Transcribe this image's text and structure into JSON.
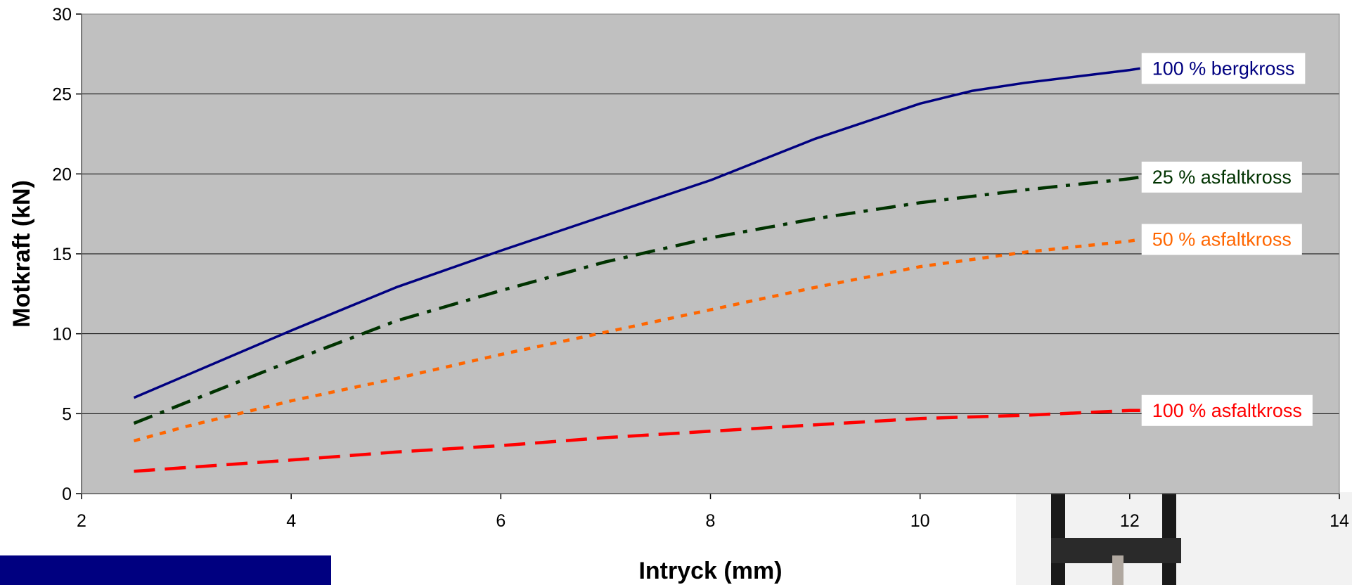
{
  "chart_data": {
    "type": "line",
    "title": "",
    "xlabel": "Intryck (mm)",
    "ylabel": "Motkraft  (kN)",
    "xlim": [
      2,
      14
    ],
    "ylim": [
      0,
      30
    ],
    "x_ticks": [
      "2",
      "4",
      "6",
      "8",
      "10",
      "12",
      "14"
    ],
    "y_ticks": [
      "0",
      "5",
      "10",
      "15",
      "20",
      "25",
      "30"
    ],
    "grid": "horizontal",
    "legend": "labels at line ends (right)",
    "plot_background": "#c0c0c0",
    "series": [
      {
        "name": "100 % bergkross",
        "color": "#000080",
        "style": "solid",
        "points": [
          [
            2.5,
            6.0
          ],
          [
            3,
            7.4
          ],
          [
            4,
            10.2
          ],
          [
            5,
            12.9
          ],
          [
            6,
            15.2
          ],
          [
            7,
            17.4
          ],
          [
            8,
            19.6
          ],
          [
            9,
            22.2
          ],
          [
            10,
            24.4
          ],
          [
            10.5,
            25.2
          ],
          [
            11,
            25.7
          ],
          [
            12,
            26.5
          ],
          [
            12.1,
            26.6
          ]
        ]
      },
      {
        "name": "25 % asfaltkross",
        "color": "#003300",
        "style": "dashdot",
        "points": [
          [
            2.5,
            4.4
          ],
          [
            3,
            5.7
          ],
          [
            4,
            8.3
          ],
          [
            5,
            10.8
          ],
          [
            6,
            12.7
          ],
          [
            7,
            14.5
          ],
          [
            8,
            16.0
          ],
          [
            9,
            17.2
          ],
          [
            10,
            18.2
          ],
          [
            11,
            19.0
          ],
          [
            12,
            19.7
          ],
          [
            12.1,
            19.8
          ]
        ]
      },
      {
        "name": "50 % asfaltkross",
        "color": "#ff6600",
        "style": "dotted",
        "points": [
          [
            2.5,
            3.3
          ],
          [
            3,
            4.2
          ],
          [
            4,
            5.8
          ],
          [
            5,
            7.2
          ],
          [
            6,
            8.7
          ],
          [
            7,
            10.1
          ],
          [
            8,
            11.5
          ],
          [
            9,
            12.9
          ],
          [
            10,
            14.2
          ],
          [
            11,
            15.1
          ],
          [
            12,
            15.8
          ],
          [
            12.1,
            15.9
          ]
        ]
      },
      {
        "name": "100 % asfaltkross",
        "color": "#ff0000",
        "style": "dashed",
        "points": [
          [
            2.5,
            1.4
          ],
          [
            4,
            2.1
          ],
          [
            5,
            2.6
          ],
          [
            6,
            3.0
          ],
          [
            7,
            3.5
          ],
          [
            8,
            3.9
          ],
          [
            9,
            4.3
          ],
          [
            10,
            4.7
          ],
          [
            11,
            4.9
          ],
          [
            12,
            5.2
          ],
          [
            12.1,
            5.2
          ]
        ]
      }
    ]
  }
}
